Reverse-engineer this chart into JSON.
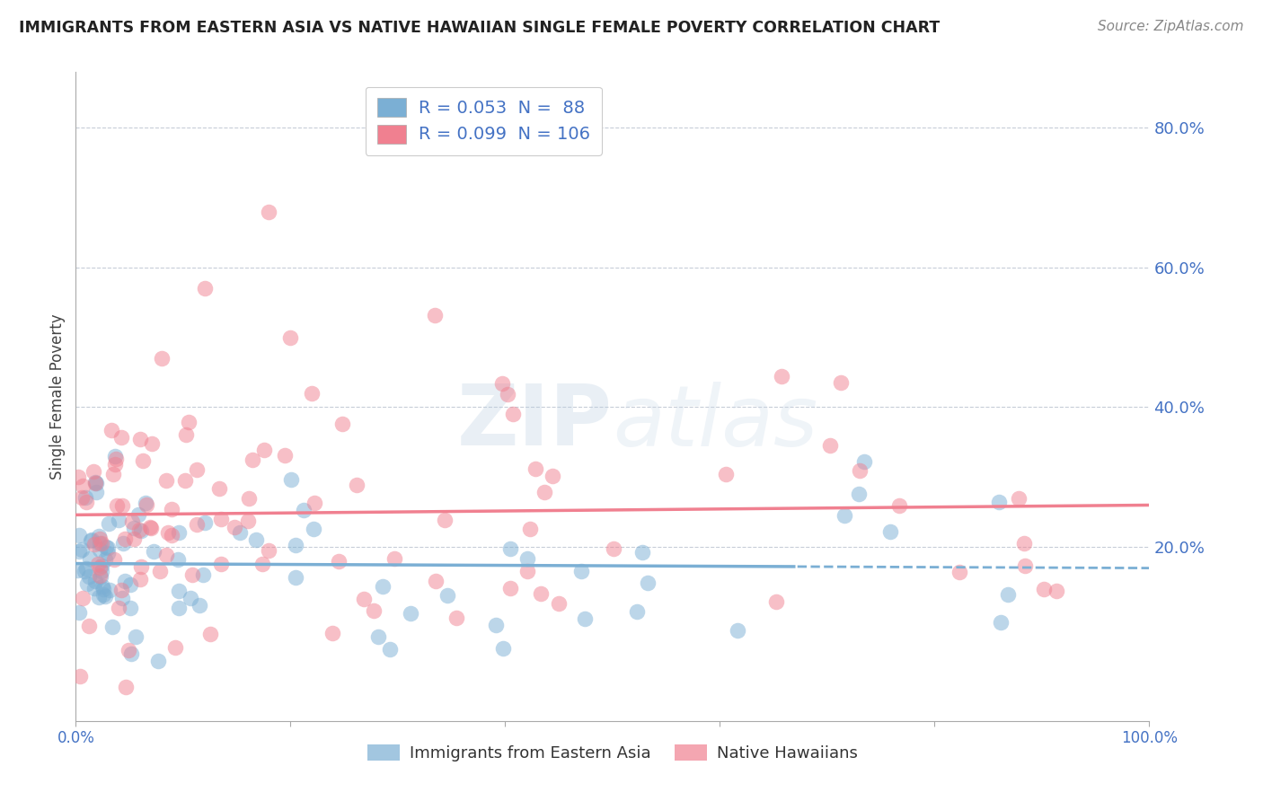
{
  "title": "IMMIGRANTS FROM EASTERN ASIA VS NATIVE HAWAIIAN SINGLE FEMALE POVERTY CORRELATION CHART",
  "source": "Source: ZipAtlas.com",
  "ylabel": "Single Female Poverty",
  "xlim": [
    0,
    1.0
  ],
  "ylim": [
    -0.05,
    0.88
  ],
  "yticks": [
    0.2,
    0.4,
    0.6,
    0.8
  ],
  "yticklabels": [
    "20.0%",
    "40.0%",
    "60.0%",
    "80.0%"
  ],
  "series1_label": "Immigrants from Eastern Asia",
  "series2_label": "Native Hawaiians",
  "series1_color": "#7bafd4",
  "series2_color": "#f08090",
  "series1_R": 0.053,
  "series1_N": 88,
  "series2_R": 0.099,
  "series2_N": 106,
  "watermark": "ZIPatlas",
  "background_color": "#ffffff",
  "grid_color": "#b0b8c8",
  "title_color": "#222222",
  "axis_color": "#4472c4",
  "legend_R_color": "#4472c4"
}
